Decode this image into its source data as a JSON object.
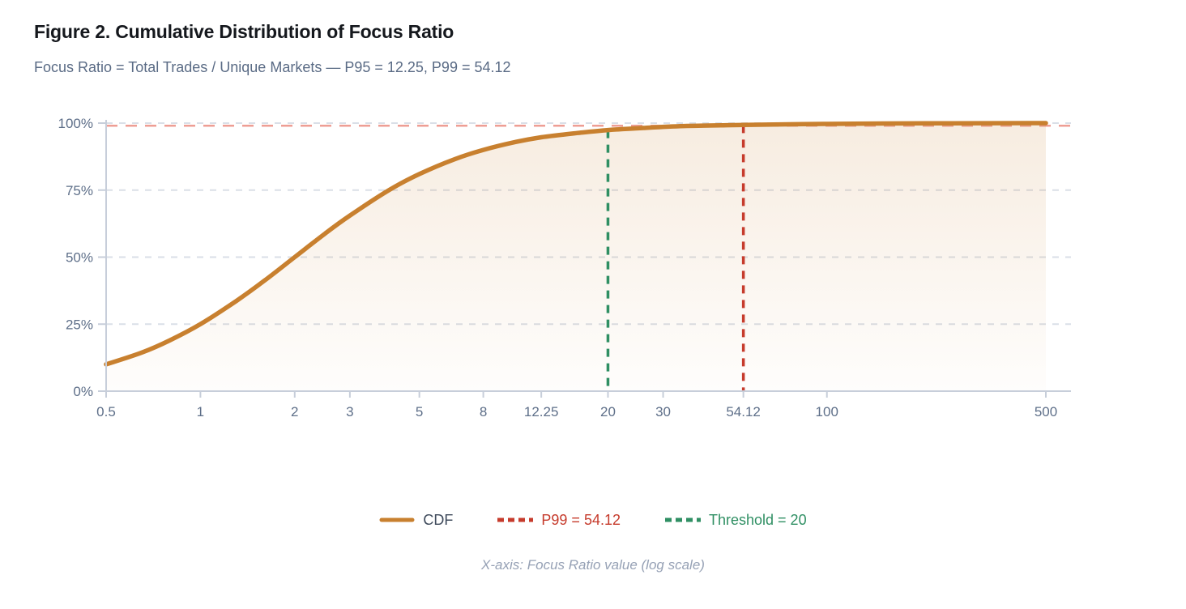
{
  "header": {
    "title": "Figure 2. Cumulative Distribution of Focus Ratio",
    "subtitle": "Focus Ratio = Total Trades / Unique Markets — P95 = 12.25, P99 = 54.12"
  },
  "legend": {
    "items": [
      {
        "key": "cdf",
        "label": "CDF",
        "swatch": "solid",
        "color": "#C8802F",
        "label_color": "#3E4A5B"
      },
      {
        "key": "p99",
        "label": "P99 = 54.12",
        "swatch": "dashed",
        "color": "#C63B2C",
        "label_color": "#C63B2C"
      },
      {
        "key": "threshold",
        "label": "Threshold = 20",
        "swatch": "dashed",
        "color": "#2F8F63",
        "label_color": "#2F8F63"
      }
    ]
  },
  "footer": {
    "caption": "X-axis: Focus Ratio value (log scale)"
  },
  "chart_data": {
    "type": "area",
    "title": "Figure 2. Cumulative Distribution of Focus Ratio",
    "x_scale": "log",
    "xlabel": "Focus Ratio value (log scale)",
    "ylabel": "",
    "xlim": [
      0.5,
      500
    ],
    "ylim": [
      0,
      100
    ],
    "grid": true,
    "legend_position": "bottom",
    "x_tick_values": [
      0.5,
      1,
      2,
      3,
      5,
      8,
      12.25,
      20,
      30,
      54.12,
      100,
      500
    ],
    "x_tick_labels": [
      "0.5",
      "1",
      "2",
      "3",
      "5",
      "8",
      "12.25",
      "20",
      "30",
      "54.12",
      "100",
      "500"
    ],
    "y_tick_values": [
      0,
      25,
      50,
      75,
      100
    ],
    "y_tick_labels": [
      "0%",
      "25%",
      "50%",
      "75%",
      "100%"
    ],
    "series": [
      {
        "name": "CDF",
        "color": "#C8802F",
        "points": [
          [
            0.5,
            10.0
          ],
          [
            0.65,
            14.4
          ],
          [
            0.8,
            19.0
          ],
          [
            1,
            25.0
          ],
          [
            1.3,
            33.6
          ],
          [
            1.6,
            41.2
          ],
          [
            2,
            50.0
          ],
          [
            2.5,
            58.8
          ],
          [
            3,
            65.5
          ],
          [
            4,
            75.0
          ],
          [
            5,
            81.0
          ],
          [
            6.5,
            86.6
          ],
          [
            8,
            90.0
          ],
          [
            10,
            92.8
          ],
          [
            12.25,
            94.7
          ],
          [
            16,
            96.3
          ],
          [
            20,
            97.4
          ],
          [
            26,
            98.2
          ],
          [
            35,
            98.9
          ],
          [
            54.12,
            99.3
          ],
          [
            75,
            99.55
          ],
          [
            100,
            99.7
          ],
          [
            150,
            99.85
          ],
          [
            250,
            99.93
          ],
          [
            500,
            100.0
          ]
        ]
      }
    ],
    "reference_lines": [
      {
        "key": "p99",
        "orientation": "vertical",
        "x": 54.12,
        "label": "P99 = 54.12",
        "color": "#C63B2C",
        "y_top": 99.3
      },
      {
        "key": "threshold",
        "orientation": "vertical",
        "x": 20,
        "label": "Threshold = 20",
        "color": "#2F8F63",
        "y_top": 97.4
      },
      {
        "key": "asymptote",
        "orientation": "horizontal",
        "y": 99.0,
        "color": "#EE9E94"
      }
    ],
    "annotations": {
      "p95": 12.25,
      "p99": 54.12,
      "threshold": 20
    },
    "colors": {
      "curve": "#C8802F",
      "fill_top": "rgba(200,128,48,0.15)",
      "fill_bottom": "rgba(200,128,48,0.015)",
      "gridline": "#DADFE7",
      "axis_line": "#C7CEDA",
      "tick_label": "#5E6F89",
      "asymptote": "#EE9E94",
      "p99_line": "#C63B2C",
      "threshold_line": "#2F8F63"
    }
  }
}
